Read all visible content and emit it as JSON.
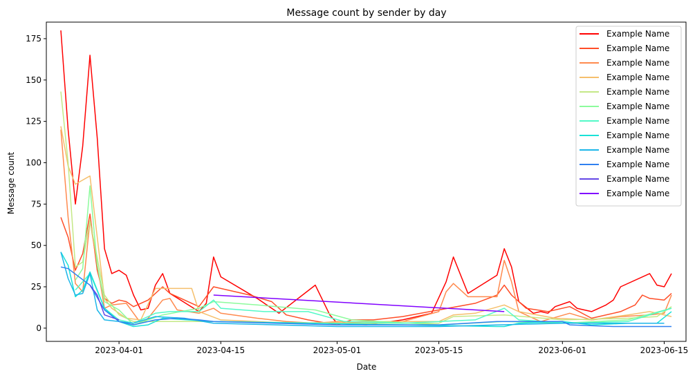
{
  "chart_data": {
    "type": "line",
    "title": "Message count by sender by day",
    "xlabel": "Date",
    "ylabel": "Message count",
    "xlim": [
      "2023-03-22",
      "2023-06-18"
    ],
    "ylim": [
      -8,
      185
    ],
    "x_ticks": [
      "2023-04-01",
      "2023-04-15",
      "2023-05-01",
      "2023-05-15",
      "2023-06-01",
      "2023-06-15"
    ],
    "y_ticks": [
      0,
      25,
      50,
      75,
      100,
      125,
      150,
      175
    ],
    "grid": false,
    "legend_position": "top-right",
    "series": [
      {
        "name": "Example Name",
        "color": "#ff0000",
        "points": [
          [
            "2023-03-24",
            180
          ],
          [
            "2023-03-25",
            120
          ],
          [
            "2023-03-26",
            75
          ],
          [
            "2023-03-27",
            110
          ],
          [
            "2023-03-28",
            165
          ],
          [
            "2023-03-29",
            115
          ],
          [
            "2023-03-30",
            48
          ],
          [
            "2023-03-31",
            33
          ],
          [
            "2023-04-01",
            35
          ],
          [
            "2023-04-02",
            32
          ],
          [
            "2023-04-03",
            20
          ],
          [
            "2023-04-04",
            11
          ],
          [
            "2023-04-05",
            12
          ],
          [
            "2023-04-06",
            26
          ],
          [
            "2023-04-07",
            33
          ],
          [
            "2023-04-08",
            21
          ],
          [
            "2023-04-12",
            10
          ],
          [
            "2023-04-13",
            15
          ],
          [
            "2023-04-14",
            43
          ],
          [
            "2023-04-15",
            31
          ],
          [
            "2023-04-20",
            18
          ],
          [
            "2023-04-22",
            12
          ],
          [
            "2023-04-23",
            9
          ],
          [
            "2023-04-28",
            26
          ],
          [
            "2023-04-30",
            8
          ],
          [
            "2023-05-01",
            3
          ],
          [
            "2023-05-05",
            2
          ],
          [
            "2023-05-10",
            5
          ],
          [
            "2023-05-14",
            9
          ],
          [
            "2023-05-16",
            28
          ],
          [
            "2023-05-17",
            43
          ],
          [
            "2023-05-19",
            21
          ],
          [
            "2023-05-23",
            32
          ],
          [
            "2023-05-24",
            48
          ],
          [
            "2023-05-25",
            37
          ],
          [
            "2023-05-26",
            16
          ],
          [
            "2023-05-28",
            9
          ],
          [
            "2023-05-29",
            10
          ],
          [
            "2023-05-30",
            9
          ],
          [
            "2023-05-31",
            13
          ],
          [
            "2023-06-02",
            16
          ],
          [
            "2023-06-03",
            12
          ],
          [
            "2023-06-05",
            10
          ],
          [
            "2023-06-07",
            14
          ],
          [
            "2023-06-08",
            17
          ],
          [
            "2023-06-09",
            25
          ],
          [
            "2023-06-13",
            33
          ],
          [
            "2023-06-14",
            26
          ],
          [
            "2023-06-15",
            25
          ],
          [
            "2023-06-16",
            33
          ]
        ]
      },
      {
        "name": "Example Name",
        "color": "#ff4d27",
        "points": [
          [
            "2023-03-24",
            67
          ],
          [
            "2023-03-25",
            55
          ],
          [
            "2023-03-26",
            35
          ],
          [
            "2023-03-27",
            45
          ],
          [
            "2023-03-28",
            69
          ],
          [
            "2023-03-29",
            35
          ],
          [
            "2023-03-30",
            18
          ],
          [
            "2023-03-31",
            15
          ],
          [
            "2023-04-01",
            17
          ],
          [
            "2023-04-02",
            16
          ],
          [
            "2023-04-03",
            13
          ],
          [
            "2023-04-05",
            17
          ],
          [
            "2023-04-07",
            25
          ],
          [
            "2023-04-08",
            21
          ],
          [
            "2023-04-12",
            13
          ],
          [
            "2023-04-14",
            25
          ],
          [
            "2023-04-19",
            20
          ],
          [
            "2023-04-22",
            16
          ],
          [
            "2023-04-24",
            8
          ],
          [
            "2023-04-27",
            5
          ],
          [
            "2023-05-01",
            2
          ],
          [
            "2023-05-03",
            5
          ],
          [
            "2023-05-06",
            5
          ],
          [
            "2023-05-10",
            7
          ],
          [
            "2023-05-15",
            11
          ],
          [
            "2023-05-20",
            15
          ],
          [
            "2023-05-23",
            20
          ],
          [
            "2023-05-24",
            26
          ],
          [
            "2023-05-25",
            20
          ],
          [
            "2023-05-27",
            12
          ],
          [
            "2023-05-30",
            10
          ],
          [
            "2023-06-02",
            13
          ],
          [
            "2023-06-05",
            6
          ],
          [
            "2023-06-09",
            10
          ],
          [
            "2023-06-11",
            14
          ],
          [
            "2023-06-12",
            20
          ],
          [
            "2023-06-13",
            18
          ],
          [
            "2023-06-15",
            17
          ],
          [
            "2023-06-16",
            21
          ]
        ]
      },
      {
        "name": "Example Name",
        "color": "#ff8a4e",
        "points": [
          [
            "2023-03-24",
            120
          ],
          [
            "2023-03-25",
            67
          ],
          [
            "2023-03-26",
            27
          ],
          [
            "2023-03-27",
            22
          ],
          [
            "2023-03-28",
            65
          ],
          [
            "2023-03-30",
            12
          ],
          [
            "2023-03-31",
            14
          ],
          [
            "2023-04-02",
            15
          ],
          [
            "2023-04-04",
            3
          ],
          [
            "2023-04-05",
            6
          ],
          [
            "2023-04-07",
            17
          ],
          [
            "2023-04-08",
            18
          ],
          [
            "2023-04-09",
            11
          ],
          [
            "2023-04-12",
            9
          ],
          [
            "2023-04-14",
            12
          ],
          [
            "2023-04-15",
            9
          ],
          [
            "2023-04-20",
            6
          ],
          [
            "2023-04-24",
            4
          ],
          [
            "2023-04-28",
            3
          ],
          [
            "2023-05-01",
            4
          ],
          [
            "2023-05-05",
            3
          ],
          [
            "2023-05-10",
            4
          ],
          [
            "2023-05-15",
            10
          ],
          [
            "2023-05-16",
            22
          ],
          [
            "2023-05-17",
            27
          ],
          [
            "2023-05-19",
            19
          ],
          [
            "2023-05-23",
            19
          ],
          [
            "2023-05-24",
            41
          ],
          [
            "2023-05-25",
            28
          ],
          [
            "2023-05-26",
            10
          ],
          [
            "2023-05-29",
            4
          ],
          [
            "2023-06-02",
            9
          ],
          [
            "2023-06-05",
            5
          ],
          [
            "2023-06-09",
            7
          ],
          [
            "2023-06-13",
            8
          ],
          [
            "2023-06-15",
            9
          ],
          [
            "2023-06-16",
            20
          ]
        ]
      },
      {
        "name": "Example Name",
        "color": "#f5bf6c",
        "points": [
          [
            "2023-03-24",
            122
          ],
          [
            "2023-03-25",
            98
          ],
          [
            "2023-03-26",
            87
          ],
          [
            "2023-03-28",
            92
          ],
          [
            "2023-03-30",
            18
          ],
          [
            "2023-03-31",
            12
          ],
          [
            "2023-04-02",
            6
          ],
          [
            "2023-04-04",
            5
          ],
          [
            "2023-04-06",
            24
          ],
          [
            "2023-04-11",
            24
          ],
          [
            "2023-04-12",
            10
          ],
          [
            "2023-04-15",
            5
          ],
          [
            "2023-04-25",
            3
          ],
          [
            "2023-05-05",
            4
          ],
          [
            "2023-05-15",
            4
          ],
          [
            "2023-05-17",
            8
          ],
          [
            "2023-05-20",
            9
          ],
          [
            "2023-05-24",
            14
          ],
          [
            "2023-05-26",
            10
          ],
          [
            "2023-05-31",
            6
          ],
          [
            "2023-06-05",
            5
          ],
          [
            "2023-06-10",
            8
          ],
          [
            "2023-06-13",
            10
          ],
          [
            "2023-06-16",
            7
          ]
        ]
      },
      {
        "name": "Example Name",
        "color": "#c4e886",
        "points": [
          [
            "2023-03-24",
            143
          ],
          [
            "2023-03-25",
            100
          ],
          [
            "2023-03-26",
            37
          ],
          [
            "2023-03-27",
            40
          ],
          [
            "2023-03-28",
            65
          ],
          [
            "2023-03-30",
            20
          ],
          [
            "2023-04-01",
            8
          ],
          [
            "2023-04-03",
            4
          ],
          [
            "2023-04-06",
            4
          ],
          [
            "2023-04-14",
            4
          ],
          [
            "2023-05-01",
            3
          ],
          [
            "2023-05-15",
            3
          ],
          [
            "2023-05-17",
            7
          ],
          [
            "2023-05-24",
            8
          ],
          [
            "2023-06-01",
            5
          ],
          [
            "2023-06-10",
            6
          ],
          [
            "2023-06-14",
            7
          ],
          [
            "2023-06-16",
            13
          ]
        ]
      },
      {
        "name": "Example Name",
        "color": "#8cfb9c",
        "points": [
          [
            "2023-03-26",
            29
          ],
          [
            "2023-03-27",
            36
          ],
          [
            "2023-03-28",
            86
          ],
          [
            "2023-03-29",
            38
          ],
          [
            "2023-03-30",
            16
          ],
          [
            "2023-04-01",
            11
          ],
          [
            "2023-04-03",
            2
          ],
          [
            "2023-04-07",
            8
          ],
          [
            "2023-04-12",
            12
          ],
          [
            "2023-04-14",
            16
          ],
          [
            "2023-04-20",
            14
          ],
          [
            "2023-04-28",
            11
          ],
          [
            "2023-05-03",
            5
          ],
          [
            "2023-05-15",
            2
          ],
          [
            "2023-05-24",
            4
          ],
          [
            "2023-06-01",
            3
          ],
          [
            "2023-06-10",
            5
          ],
          [
            "2023-06-16",
            12
          ]
        ]
      },
      {
        "name": "Example Name",
        "color": "#52f9c7",
        "points": [
          [
            "2023-03-26",
            23
          ],
          [
            "2023-03-28",
            33
          ],
          [
            "2023-03-30",
            12
          ],
          [
            "2023-04-01",
            5
          ],
          [
            "2023-04-03",
            3
          ],
          [
            "2023-04-06",
            9
          ],
          [
            "2023-04-08",
            10
          ],
          [
            "2023-04-12",
            10
          ],
          [
            "2023-04-14",
            17
          ],
          [
            "2023-04-15",
            12
          ],
          [
            "2023-04-21",
            10
          ],
          [
            "2023-04-27",
            10
          ],
          [
            "2023-05-02",
            4
          ],
          [
            "2023-05-10",
            3
          ],
          [
            "2023-05-20",
            5
          ],
          [
            "2023-05-24",
            12
          ],
          [
            "2023-05-26",
            5
          ],
          [
            "2023-06-02",
            3
          ],
          [
            "2023-06-10",
            4
          ],
          [
            "2023-06-16",
            12
          ]
        ]
      },
      {
        "name": "Example Name",
        "color": "#19e2d7",
        "points": [
          [
            "2023-03-24",
            46
          ],
          [
            "2023-03-25",
            38
          ],
          [
            "2023-03-26",
            19
          ],
          [
            "2023-03-27",
            23
          ],
          [
            "2023-03-28",
            34
          ],
          [
            "2023-03-30",
            12
          ],
          [
            "2023-04-01",
            4
          ],
          [
            "2023-04-03",
            1
          ],
          [
            "2023-04-05",
            2
          ],
          [
            "2023-04-07",
            6
          ],
          [
            "2023-04-14",
            4
          ],
          [
            "2023-04-28",
            3
          ],
          [
            "2023-05-10",
            2
          ],
          [
            "2023-05-23",
            1
          ],
          [
            "2023-05-24",
            1
          ],
          [
            "2023-05-26",
            3
          ],
          [
            "2023-06-01",
            4
          ],
          [
            "2023-06-05",
            2
          ],
          [
            "2023-06-10",
            3
          ],
          [
            "2023-06-14",
            3
          ],
          [
            "2023-06-16",
            10
          ]
        ]
      },
      {
        "name": "Example Name",
        "color": "#1cb6e9",
        "points": [
          [
            "2023-03-24",
            46
          ],
          [
            "2023-03-25",
            30
          ],
          [
            "2023-03-26",
            20
          ],
          [
            "2023-03-27",
            21
          ],
          [
            "2023-03-28",
            33
          ],
          [
            "2023-03-29",
            11
          ],
          [
            "2023-03-30",
            5
          ],
          [
            "2023-04-01",
            4
          ],
          [
            "2023-04-03",
            3
          ],
          [
            "2023-04-06",
            7
          ],
          [
            "2023-04-10",
            6
          ],
          [
            "2023-04-14",
            3
          ],
          [
            "2023-05-01",
            1
          ],
          [
            "2023-05-15",
            1
          ],
          [
            "2023-06-01",
            3
          ],
          [
            "2023-06-15",
            3
          ]
        ]
      },
      {
        "name": "Example Name",
        "color": "#2f80f0",
        "points": [
          [
            "2023-03-24",
            37
          ],
          [
            "2023-03-25",
            36
          ],
          [
            "2023-03-28",
            26
          ],
          [
            "2023-03-30",
            11
          ],
          [
            "2023-04-01",
            4
          ],
          [
            "2023-04-03",
            2
          ],
          [
            "2023-04-06",
            5
          ],
          [
            "2023-04-09",
            6
          ],
          [
            "2023-04-12",
            5
          ],
          [
            "2023-04-14",
            4
          ],
          [
            "2023-05-01",
            2
          ],
          [
            "2023-05-15",
            2
          ],
          [
            "2023-05-23",
            4
          ],
          [
            "2023-06-01",
            4
          ],
          [
            "2023-06-02",
            2
          ],
          [
            "2023-06-08",
            1
          ],
          [
            "2023-06-16",
            1
          ]
        ]
      },
      {
        "name": "Example Name",
        "color": "#6346e6",
        "points": [
          [
            "2023-03-28",
            26
          ],
          [
            "2023-03-29",
            20
          ],
          [
            "2023-03-30",
            8
          ],
          [
            "2023-04-01",
            5
          ]
        ]
      },
      {
        "name": "Example Name",
        "color": "#8000ff",
        "points": [
          [
            "2023-04-14",
            20
          ],
          [
            "2023-05-24",
            10
          ]
        ]
      }
    ]
  }
}
